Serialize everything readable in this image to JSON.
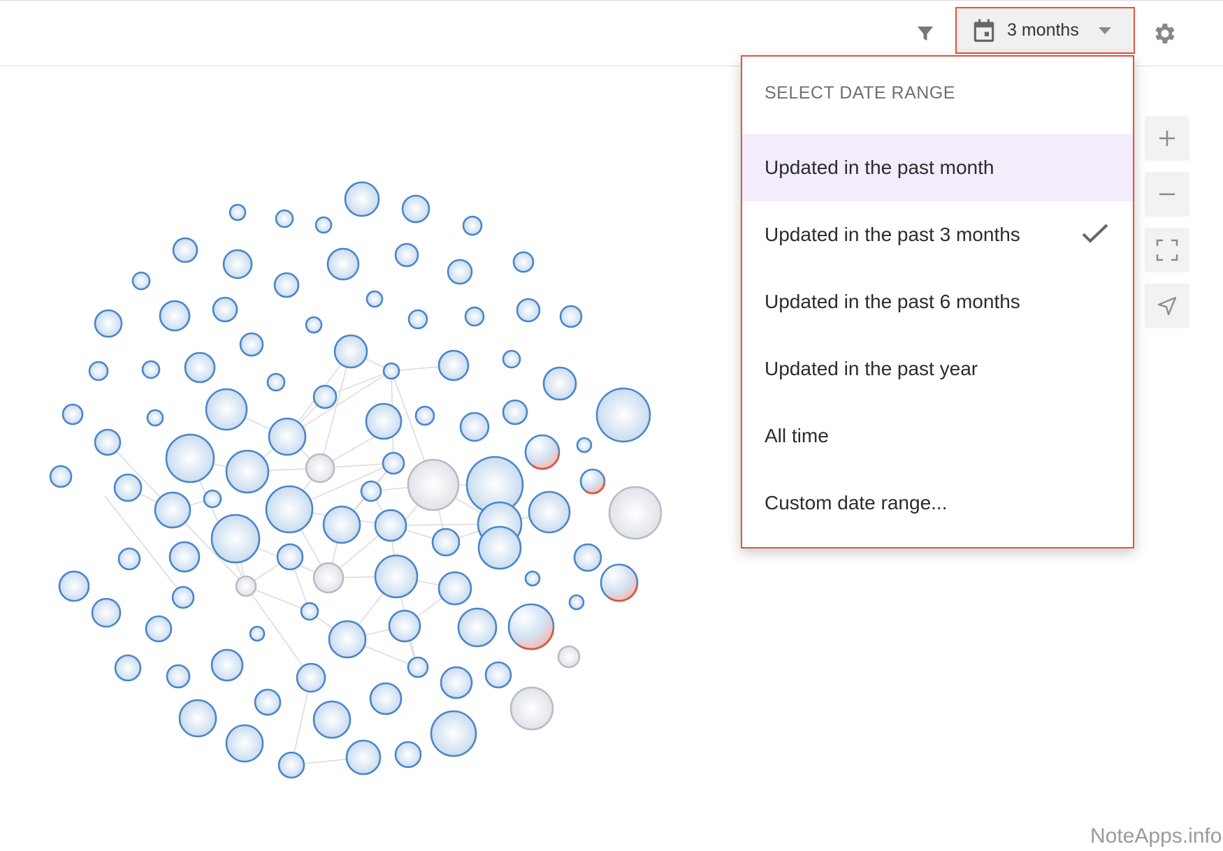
{
  "toolbar": {
    "filter_icon": "filter-icon",
    "date_button_label": "3 months",
    "calendar_icon": "calendar-icon",
    "settings_icon": "gear-icon"
  },
  "dropdown": {
    "header": "SELECT DATE RANGE",
    "options": [
      {
        "label": "Updated in the past month",
        "highlighted": true,
        "selected": false
      },
      {
        "label": "Updated in the past 3 months",
        "highlighted": false,
        "selected": true
      },
      {
        "label": "Updated in the past 6 months",
        "highlighted": false,
        "selected": false
      },
      {
        "label": "Updated in the past year",
        "highlighted": false,
        "selected": false
      },
      {
        "label": "All time",
        "highlighted": false,
        "selected": false
      },
      {
        "label": "Custom date range...",
        "highlighted": false,
        "selected": false
      }
    ]
  },
  "zoom_controls": [
    "zoom-in-icon",
    "zoom-out-icon",
    "fullscreen-icon",
    "locate-icon"
  ],
  "colors": {
    "accent_border": "#e5533d",
    "node_blue": "#4a86c8",
    "node_gray": "#b8bcc6",
    "node_red": "#e0553f",
    "hover_bg": "#f3ecfb"
  },
  "watermark": "NoteApps.info"
}
